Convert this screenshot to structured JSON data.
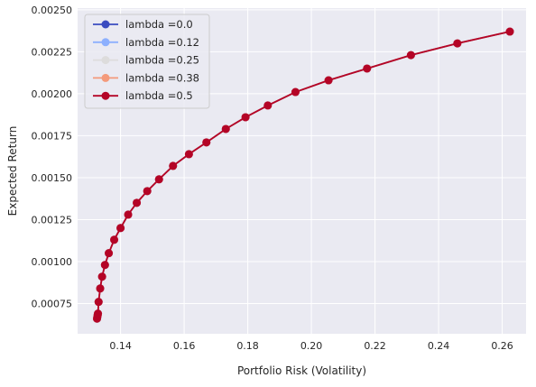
{
  "chart_data": {
    "type": "line",
    "xlabel": "Portfolio Risk (Volatility)",
    "ylabel": "Expected Return",
    "xlim": [
      0.1265,
      0.2675
    ],
    "ylim": [
      0.00057,
      0.00251
    ],
    "x_ticks": [
      0.14,
      0.16,
      0.18,
      0.2,
      0.22,
      0.24,
      0.26
    ],
    "x_tick_labels": [
      "0.14",
      "0.16",
      "0.18",
      "0.20",
      "0.22",
      "0.24",
      "0.26"
    ],
    "y_ticks": [
      0.00075,
      0.001,
      0.00125,
      0.0015,
      0.00175,
      0.002,
      0.00225,
      0.0025
    ],
    "y_tick_labels": [
      "0.00075",
      "0.00100",
      "0.00125",
      "0.00150",
      "0.00175",
      "0.00200",
      "0.00225",
      "0.00250"
    ],
    "grid": true,
    "background": "#eaeaf2",
    "legend_position": "top-left",
    "x": [
      0.1326,
      0.1327,
      0.1328,
      0.1329,
      0.1331,
      0.1336,
      0.1342,
      0.1351,
      0.1363,
      0.138,
      0.14,
      0.1424,
      0.1451,
      0.1484,
      0.1521,
      0.1565,
      0.1615,
      0.167,
      0.1731,
      0.1793,
      0.1863,
      0.195,
      0.2054,
      0.2175,
      0.2313,
      0.2459,
      0.2624
    ],
    "series": [
      {
        "name": "lambda =0.0",
        "color": "#3b4cc0",
        "values": [
          0.00066,
          0.00067,
          0.00068,
          0.00069,
          0.00076,
          0.00084,
          0.00091,
          0.00098,
          0.00105,
          0.00113,
          0.0012,
          0.00128,
          0.00135,
          0.00142,
          0.00149,
          0.00157,
          0.00164,
          0.00171,
          0.00179,
          0.00186,
          0.00193,
          0.00201,
          0.00208,
          0.00215,
          0.00223,
          0.0023,
          0.00237
        ]
      },
      {
        "name": "lambda =0.12",
        "color": "#8db0fe",
        "values": [
          0.00066,
          0.00067,
          0.00068,
          0.00069,
          0.00076,
          0.00084,
          0.00091,
          0.00098,
          0.00105,
          0.00113,
          0.0012,
          0.00128,
          0.00135,
          0.00142,
          0.00149,
          0.00157,
          0.00164,
          0.00171,
          0.00179,
          0.00186,
          0.00193,
          0.00201,
          0.00208,
          0.00215,
          0.00223,
          0.0023,
          0.00237
        ]
      },
      {
        "name": "lambda =0.25",
        "color": "#dddcdc",
        "values": [
          0.00066,
          0.00067,
          0.00068,
          0.00069,
          0.00076,
          0.00084,
          0.00091,
          0.00098,
          0.00105,
          0.00113,
          0.0012,
          0.00128,
          0.00135,
          0.00142,
          0.00149,
          0.00157,
          0.00164,
          0.00171,
          0.00179,
          0.00186,
          0.00193,
          0.00201,
          0.00208,
          0.00215,
          0.00223,
          0.0023,
          0.00237
        ]
      },
      {
        "name": "lambda =0.38",
        "color": "#f49a7b",
        "values": [
          0.00066,
          0.00067,
          0.00068,
          0.00069,
          0.00076,
          0.00084,
          0.00091,
          0.00098,
          0.00105,
          0.00113,
          0.0012,
          0.00128,
          0.00135,
          0.00142,
          0.00149,
          0.00157,
          0.00164,
          0.00171,
          0.00179,
          0.00186,
          0.00193,
          0.00201,
          0.00208,
          0.00215,
          0.00223,
          0.0023,
          0.00237
        ]
      },
      {
        "name": "lambda =0.5",
        "color": "#b40426",
        "values": [
          0.00066,
          0.00067,
          0.00068,
          0.00069,
          0.00076,
          0.00084,
          0.00091,
          0.00098,
          0.00105,
          0.00113,
          0.0012,
          0.00128,
          0.00135,
          0.00142,
          0.00149,
          0.00157,
          0.00164,
          0.00171,
          0.00179,
          0.00186,
          0.00193,
          0.00201,
          0.00208,
          0.00215,
          0.00223,
          0.0023,
          0.00237
        ]
      }
    ]
  }
}
